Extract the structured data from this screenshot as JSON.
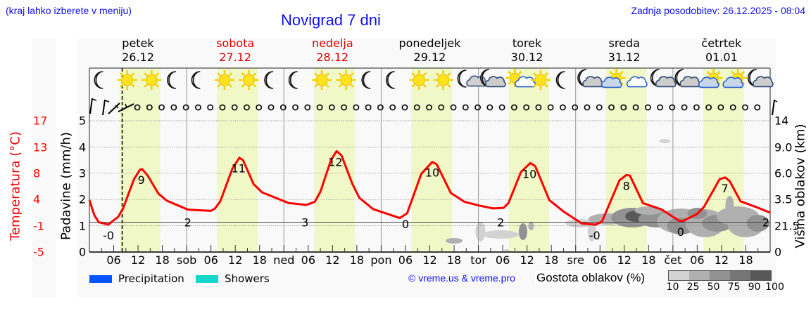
{
  "header": {
    "region_hint": "(kraj lahko izberete v meniju)",
    "title": "Novigrad 7 dni",
    "last_update": "Zadnja posodobitev: 26.12.2025 - 08:04"
  },
  "days": [
    {
      "name": "petek",
      "date": "26.12",
      "color": "#000000"
    },
    {
      "name": "sobota",
      "date": "27.12",
      "color": "#dd0000"
    },
    {
      "name": "nedelja",
      "date": "28.12",
      "color": "#dd0000"
    },
    {
      "name": "ponedeljek",
      "date": "29.12",
      "color": "#000000"
    },
    {
      "name": "torek",
      "date": "30.12",
      "color": "#000000"
    },
    {
      "name": "sreda",
      "date": "31.12",
      "color": "#000000"
    },
    {
      "name": "četrtek",
      "date": "01.01",
      "color": "#000000"
    }
  ],
  "axes": {
    "temp_label": "Temperatura (°C)",
    "temp_ticks": [
      "17",
      "13",
      "8",
      "4",
      "-1",
      "-5"
    ],
    "precip_label": "Padavine (mm/h)",
    "precip_ticks": [
      "5",
      "4",
      "3",
      "2",
      "1",
      "0"
    ],
    "cloud_label": "Višina oblakov (km)",
    "cloud_ticks": [
      "14",
      "9.0",
      "6.0",
      "3.5",
      "21.5",
      "0"
    ]
  },
  "x_ticks": [
    "06",
    "12",
    "18",
    "sob",
    "06",
    "12",
    "18",
    "ned",
    "06",
    "12",
    "18",
    "pon",
    "06",
    "12",
    "18",
    "tor",
    "06",
    "12",
    "18",
    "sre",
    "06",
    "12",
    "18",
    "čet",
    "06",
    "12",
    "18"
  ],
  "weather_icons": [
    "moon",
    "sun",
    "sun",
    "moon",
    "moon",
    "sun",
    "sun",
    "moon",
    "moon",
    "sun",
    "sun",
    "moon",
    "moon",
    "sun",
    "sun",
    "moon-cloud-small",
    "moon-cloud",
    "sun-cloud-small",
    "sun",
    "moon",
    "moon-cloud",
    "sun-cloud",
    "cloud",
    "moon-cloud",
    "moon-cloud",
    "sun-cloud",
    "sun-cloud",
    "moon-cloud"
  ],
  "legend": {
    "precipitation_label": "Precipitation",
    "precipitation_color": "#0055ff",
    "showers_label": "Showers",
    "showers_color": "#11d8c8",
    "copyright": "© vreme.us & vreme.pro",
    "cloud_density_label": "Gostota oblakov (%)",
    "cloud_density_ticks": [
      "10",
      "25",
      "50",
      "75",
      "90",
      "100"
    ],
    "cloud_density_colors": [
      "#d2d2d2",
      "#b0b0b0",
      "#929292",
      "#767676",
      "#585858"
    ]
  },
  "chart_data": {
    "type": "line",
    "title": "Novigrad 7 dni",
    "xlabel": "",
    "ylabel": "Temperatura (°C)",
    "ylabel_secondary": [
      "Padavine (mm/h)",
      "Višina oblakov (km)"
    ],
    "x_unit": "hours from Fri 26.12 00:00",
    "xlim": [
      0,
      168
    ],
    "ylim": [
      -5,
      17
    ],
    "precip_ylim": [
      0,
      5
    ],
    "grid": true,
    "current_time_marker_hour": 8.1,
    "daylight_hours": [
      7.5,
      17.5
    ],
    "series": [
      {
        "name": "Temperatura",
        "color": "#ff0000",
        "x": [
          0,
          1.2,
          2.3,
          4.7,
          5.4,
          6.3,
          7.1,
          8.3,
          11,
          12.5,
          13,
          14.4,
          17,
          19.1,
          24.3,
          30,
          31,
          32.3,
          35.3,
          37,
          37.9,
          40.5,
          42.6,
          49.2,
          53.5,
          55.6,
          57,
          59.6,
          61,
          62.2,
          64.9,
          66.6,
          70,
          76.6,
          78.4,
          81.9,
          84.6,
          85.7,
          89.2,
          92.6,
          96.1,
          99.6,
          102.2,
          103.4,
          106.5,
          108.8,
          110,
          113.5,
          117,
          121.5,
          125,
          126.5,
          130.8,
          132.5,
          133.4,
          136.6,
          141.3,
          145.6,
          146.5,
          150,
          151.7,
          155.5,
          156.9,
          158,
          160.7,
          164.7,
          168
        ],
        "values": [
          3.7,
          1.2,
          0,
          -0.4,
          0,
          0.5,
          0.9,
          2.3,
          7.2,
          8.8,
          8.9,
          7.8,
          4.8,
          3.6,
          2.1,
          1.9,
          2.3,
          3.5,
          9,
          10.8,
          10.4,
          6.4,
          5,
          3.2,
          2.9,
          3.4,
          5.1,
          10.4,
          11.9,
          11.2,
          6.4,
          4.1,
          2.2,
          0.7,
          1.5,
          8.1,
          10.1,
          9.7,
          4.9,
          3.4,
          2.8,
          2.3,
          2.4,
          3.2,
          8.4,
          9.9,
          9.4,
          3.7,
          1.8,
          -0.2,
          -0.4,
          0.1,
          7,
          7.9,
          7.8,
          3.2,
          2.1,
          0.2,
          0.2,
          1.4,
          2.6,
          7.2,
          7.5,
          6.9,
          3.5,
          2.5,
          1.6
        ]
      },
      {
        "name": "Precipitation",
        "color": "#0055ff",
        "values": []
      },
      {
        "name": "Showers",
        "color": "#11d8c8",
        "values": []
      }
    ],
    "annotations": [
      {
        "x": 4.7,
        "label": "-0",
        "kind": "min"
      },
      {
        "x": 12.8,
        "label": "9",
        "kind": "max"
      },
      {
        "x": 24.3,
        "label": "2",
        "kind": "min"
      },
      {
        "x": 36.8,
        "label": "11",
        "kind": "max"
      },
      {
        "x": 53.2,
        "label": "3",
        "kind": "min"
      },
      {
        "x": 60.7,
        "label": "12",
        "kind": "max"
      },
      {
        "x": 78,
        "label": "0",
        "kind": "min"
      },
      {
        "x": 84.6,
        "label": "10",
        "kind": "max"
      },
      {
        "x": 101.5,
        "label": "2",
        "kind": "min"
      },
      {
        "x": 108.6,
        "label": "10",
        "kind": "max"
      },
      {
        "x": 124.7,
        "label": "-0",
        "kind": "min"
      },
      {
        "x": 132.5,
        "label": "8",
        "kind": "max"
      },
      {
        "x": 145.9,
        "label": "0",
        "kind": "min"
      },
      {
        "x": 156.8,
        "label": "7",
        "kind": "max"
      },
      {
        "x": 168,
        "label": "2",
        "kind": "edge"
      }
    ],
    "wind": "calm (circles) for almost the entire period; light wind barbs at start",
    "cloud_density_range_pct": [
      10,
      100
    ]
  }
}
